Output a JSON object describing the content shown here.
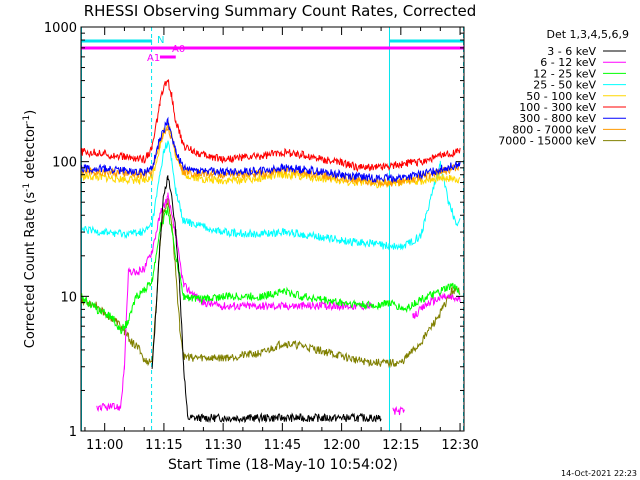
{
  "chart_data": {
    "type": "line",
    "title": "RHESSI Observing Summary Count Rates, Corrected",
    "xlabel": "Start Time (18-May-10 10:54:02)",
    "ylabel_parts": {
      "base": "Corrected Count Rate (s",
      "exp1": "-1",
      "mid": " detector",
      "exp2": "-1",
      "end": ")"
    },
    "yscale": "log",
    "ylim": [
      1,
      1000
    ],
    "xlim": [
      "10:54",
      "12:31"
    ],
    "x_ticks": [
      "11:00",
      "11:15",
      "11:30",
      "11:45",
      "12:00",
      "12:15",
      "12:30"
    ],
    "y_ticks": [
      "1",
      "10",
      "100",
      "1000"
    ],
    "footer_date": "14-Oct-2021 22:23",
    "legend": {
      "header": "Det 1,3,4,5,6,9",
      "placement": "right"
    },
    "attenuator_labels": {
      "n": "N",
      "a0": "A0",
      "a1": "A1"
    },
    "night_color": "#00e5ee",
    "series": [
      {
        "name": "3 - 6 keV",
        "color": "#000000",
        "x": [
          "10:54",
          "11:04",
          "11:06",
          "11:08",
          "11:10",
          "11:12",
          "11:13",
          "11:14",
          "11:15",
          "11:16",
          "11:17",
          "11:18",
          "11:19",
          "11:20",
          "11:21",
          "11:25",
          "11:40",
          "12:00",
          "12:10",
          "12:12"
        ],
        "y": [
          null,
          null,
          null,
          null,
          null,
          2.8,
          8,
          25,
          60,
          75,
          55,
          30,
          12,
          3,
          1.25,
          1.25,
          1.25,
          1.25,
          1.25,
          null
        ]
      },
      {
        "name": "6 - 12 keV",
        "color": "#ff00ff",
        "x": [
          "10:58",
          "10:59",
          "11:04",
          "11:05",
          "11:06",
          "11:08",
          "11:10",
          "11:12",
          "11:14",
          "11:16",
          "11:18",
          "11:20",
          "11:25",
          "11:30",
          "11:40",
          "11:50",
          "12:00",
          "12:08",
          "12:12",
          "12:13",
          "12:16",
          "12:17",
          "12:18",
          "12:22",
          "12:26",
          "12:30"
        ],
        "y": [
          1.5,
          1.5,
          1.5,
          3,
          15,
          15,
          16,
          22,
          40,
          55,
          28,
          12,
          9,
          8.5,
          8.5,
          8.5,
          8.5,
          8.5,
          null,
          1.4,
          1.4,
          null,
          7,
          9,
          10,
          9.5
        ]
      },
      {
        "name": "12 - 25 keV",
        "color": "#00ff00",
        "x": [
          "10:54",
          "10:58",
          "11:02",
          "11:04",
          "11:06",
          "11:08",
          "11:10",
          "11:12",
          "11:14",
          "11:16",
          "11:18",
          "11:20",
          "11:24",
          "11:30",
          "11:40",
          "11:45",
          "11:50",
          "12:00",
          "12:08",
          "12:12",
          "12:16",
          "12:20",
          "12:24",
          "12:28",
          "12:30"
        ],
        "y": [
          10,
          8,
          7,
          5.5,
          6.5,
          10,
          11,
          13,
          32,
          45,
          20,
          10,
          9.5,
          10,
          10,
          11,
          10,
          9,
          8.5,
          9,
          8,
          9.5,
          10.5,
          12,
          11
        ]
      },
      {
        "name": "25 - 50 keV",
        "color": "#00ffff",
        "x": [
          "10:54",
          "11:00",
          "11:05",
          "11:10",
          "11:12",
          "11:14",
          "11:15",
          "11:16",
          "11:17",
          "11:18",
          "11:20",
          "11:25",
          "11:30",
          "11:40",
          "11:45",
          "11:50",
          "12:00",
          "12:05",
          "12:10",
          "12:15",
          "12:20",
          "12:23",
          "12:25",
          "12:27",
          "12:29",
          "12:30"
        ],
        "y": [
          31,
          30,
          29,
          30,
          34,
          80,
          120,
          140,
          100,
          60,
          36,
          33,
          30,
          29,
          30,
          29,
          26,
          25,
          24,
          23,
          28,
          60,
          95,
          52,
          35,
          36
        ]
      },
      {
        "name": "50 - 100 keV",
        "color": "#ffd700",
        "x": [
          "10:54",
          "11:00",
          "11:05",
          "11:10",
          "11:12",
          "11:14",
          "11:15",
          "11:16",
          "11:17",
          "11:18",
          "11:20",
          "11:25",
          "11:30",
          "11:40",
          "11:45",
          "11:50",
          "12:00",
          "12:05",
          "12:10",
          "12:15",
          "12:20",
          "12:25",
          "12:30"
        ],
        "y": [
          78,
          76,
          74,
          72,
          76,
          130,
          170,
          190,
          160,
          110,
          80,
          74,
          72,
          76,
          80,
          78,
          72,
          70,
          68,
          70,
          72,
          76,
          74
        ]
      },
      {
        "name": "100 - 300 keV",
        "color": "#ff0000",
        "x": [
          "10:54",
          "11:00",
          "11:05",
          "11:10",
          "11:12",
          "11:14",
          "11:15",
          "11:16",
          "11:17",
          "11:18",
          "11:20",
          "11:25",
          "11:30",
          "11:40",
          "11:45",
          "11:50",
          "12:00",
          "12:05",
          "12:10",
          "12:15",
          "12:20",
          "12:25",
          "12:30"
        ],
        "y": [
          118,
          115,
          108,
          104,
          125,
          270,
          360,
          400,
          310,
          200,
          130,
          112,
          105,
          110,
          118,
          112,
          98,
          90,
          92,
          96,
          100,
          110,
          120
        ]
      },
      {
        "name": "300 - 800 keV",
        "color": "#0000ff",
        "x": [
          "10:54",
          "11:00",
          "11:05",
          "11:10",
          "11:12",
          "11:14",
          "11:16",
          "11:18",
          "11:20",
          "11:25",
          "11:30",
          "11:40",
          "11:45",
          "11:50",
          "12:00",
          "12:05",
          "12:10",
          "12:15",
          "12:20",
          "12:25",
          "12:30"
        ],
        "y": [
          90,
          88,
          86,
          84,
          88,
          150,
          200,
          120,
          88,
          86,
          84,
          86,
          90,
          88,
          80,
          77,
          75,
          76,
          80,
          88,
          96
        ]
      },
      {
        "name": "800 - 7000 keV",
        "color": "#ff9900",
        "x": [
          "10:54",
          "11:00",
          "11:05",
          "11:10",
          "11:12",
          "11:14",
          "11:16",
          "11:18",
          "11:20",
          "11:25",
          "11:30",
          "11:40",
          "11:45",
          "11:50",
          "12:00",
          "12:05",
          "12:10",
          "12:15",
          "12:20",
          "12:25",
          "12:30"
        ],
        "y": [
          85,
          84,
          82,
          80,
          84,
          140,
          185,
          115,
          84,
          82,
          80,
          82,
          86,
          84,
          76,
          72,
          70,
          70,
          76,
          84,
          92
        ]
      },
      {
        "name": "7000 - 15000 keV",
        "color": "#808000",
        "x": [
          "10:54",
          "10:58",
          "11:00",
          "11:03",
          "11:05",
          "11:07",
          "11:09",
          "11:10",
          "11:12",
          "11:13",
          "11:14",
          "11:15",
          "11:16",
          "11:17",
          "11:18",
          "11:19",
          "11:20",
          "11:22",
          "11:30",
          "11:40",
          "11:45",
          "11:50",
          "12:00",
          "12:05",
          "12:10",
          "12:15",
          "12:20",
          "12:25",
          "12:28",
          "12:30"
        ],
        "y": [
          9.5,
          8.5,
          7.5,
          6.5,
          5.5,
          4.5,
          4,
          3.3,
          3.3,
          8,
          25,
          45,
          50,
          35,
          15,
          6,
          3.6,
          3.5,
          3.5,
          3.8,
          4.5,
          4.3,
          3.6,
          3.3,
          3.2,
          3.2,
          4.5,
          7.5,
          11,
          11
        ]
      }
    ]
  }
}
